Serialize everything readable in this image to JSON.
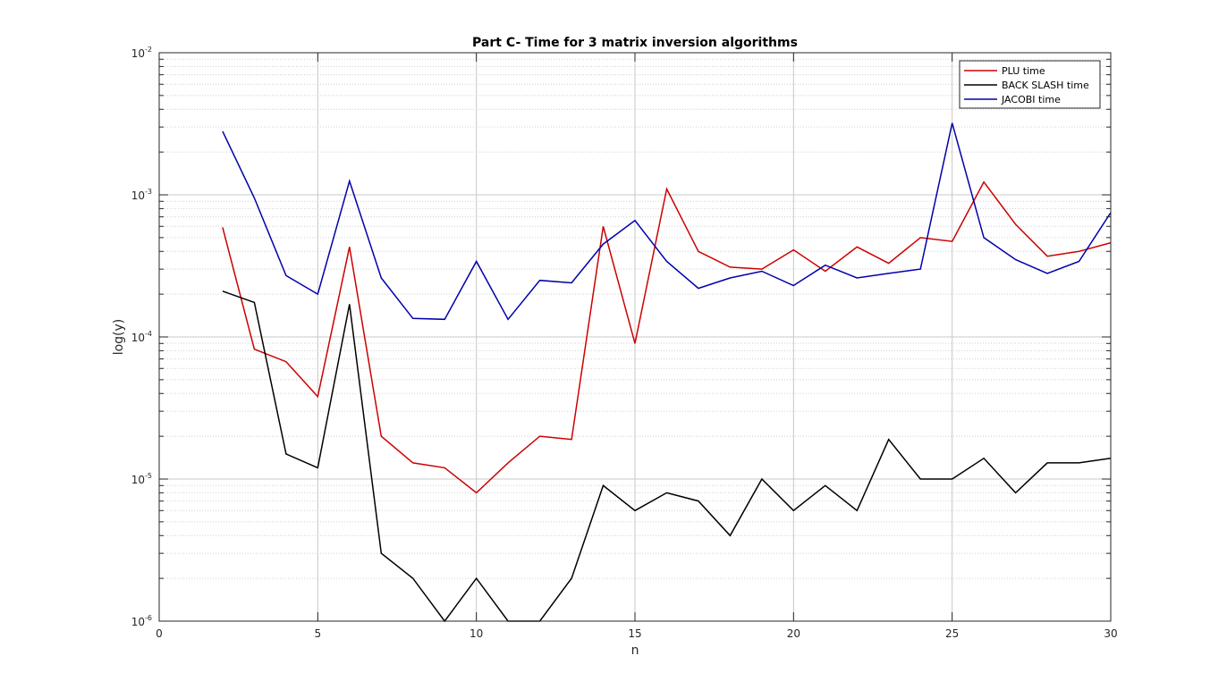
{
  "chart_data": {
    "type": "line",
    "title": "Part C- Time for 3 matrix inversion algorithms",
    "xlabel": "n",
    "ylabel": "log(y)",
    "xlim": [
      0,
      30
    ],
    "ylim": [
      1e-06,
      0.01
    ],
    "yscale": "log",
    "grid": true,
    "legend_position": "top-right",
    "x": [
      2,
      3,
      4,
      5,
      6,
      7,
      8,
      9,
      10,
      11,
      12,
      13,
      14,
      15,
      16,
      17,
      18,
      19,
      20,
      21,
      22,
      23,
      24,
      25,
      26,
      27,
      28,
      29,
      30
    ],
    "x_ticks": [
      0,
      5,
      10,
      15,
      20,
      25,
      30
    ],
    "x_tick_labels": [
      "0",
      "5",
      "10",
      "15",
      "20",
      "25",
      "30"
    ],
    "y_ticks": [
      {
        "value": 1e-06,
        "base": "10",
        "exp": "-6"
      },
      {
        "value": 1e-05,
        "base": "10",
        "exp": "-5"
      },
      {
        "value": 0.0001,
        "base": "10",
        "exp": "-4"
      },
      {
        "value": 0.001,
        "base": "10",
        "exp": "-3"
      },
      {
        "value": 0.01,
        "base": "10",
        "exp": "-2"
      }
    ],
    "series": [
      {
        "name": "PLU time",
        "color": "#cc0000",
        "values": [
          0.00059,
          8.2e-05,
          6.7e-05,
          3.8e-05,
          0.00043,
          2e-05,
          1.3e-05,
          1.2e-05,
          8e-06,
          1.3e-05,
          2e-05,
          1.9e-05,
          0.0006,
          9e-05,
          0.0011,
          0.0004,
          0.00031,
          0.0003,
          0.00041,
          0.00029,
          0.00043,
          0.00033,
          0.0005,
          0.00047,
          0.00123,
          0.00062,
          0.00037,
          0.0004,
          0.00046
        ]
      },
      {
        "name": "BACK SLASH time",
        "color": "#000000",
        "values": [
          0.00021,
          0.000175,
          1.5e-05,
          1.2e-05,
          0.00017,
          3e-06,
          2e-06,
          1e-06,
          2e-06,
          1e-06,
          1e-06,
          2e-06,
          9e-06,
          6e-06,
          8e-06,
          7e-06,
          4e-06,
          1e-05,
          6e-06,
          9e-06,
          6e-06,
          1.9e-05,
          1e-05,
          1e-05,
          1.4e-05,
          8e-06,
          1.3e-05,
          1.3e-05,
          1.4e-05
        ]
      },
      {
        "name": "JACOBI time",
        "color": "#0000aa",
        "values": [
          0.0028,
          0.00095,
          0.00027,
          0.0002,
          0.00125,
          0.00026,
          0.000135,
          0.000133,
          0.00034,
          0.000133,
          0.00025,
          0.00024,
          0.00045,
          0.00066,
          0.00034,
          0.00022,
          0.00026,
          0.00029,
          0.00023,
          0.00032,
          0.00026,
          0.00028,
          0.0003,
          0.0032,
          0.0005,
          0.00035,
          0.00028,
          0.00034,
          0.00075
        ]
      }
    ]
  }
}
